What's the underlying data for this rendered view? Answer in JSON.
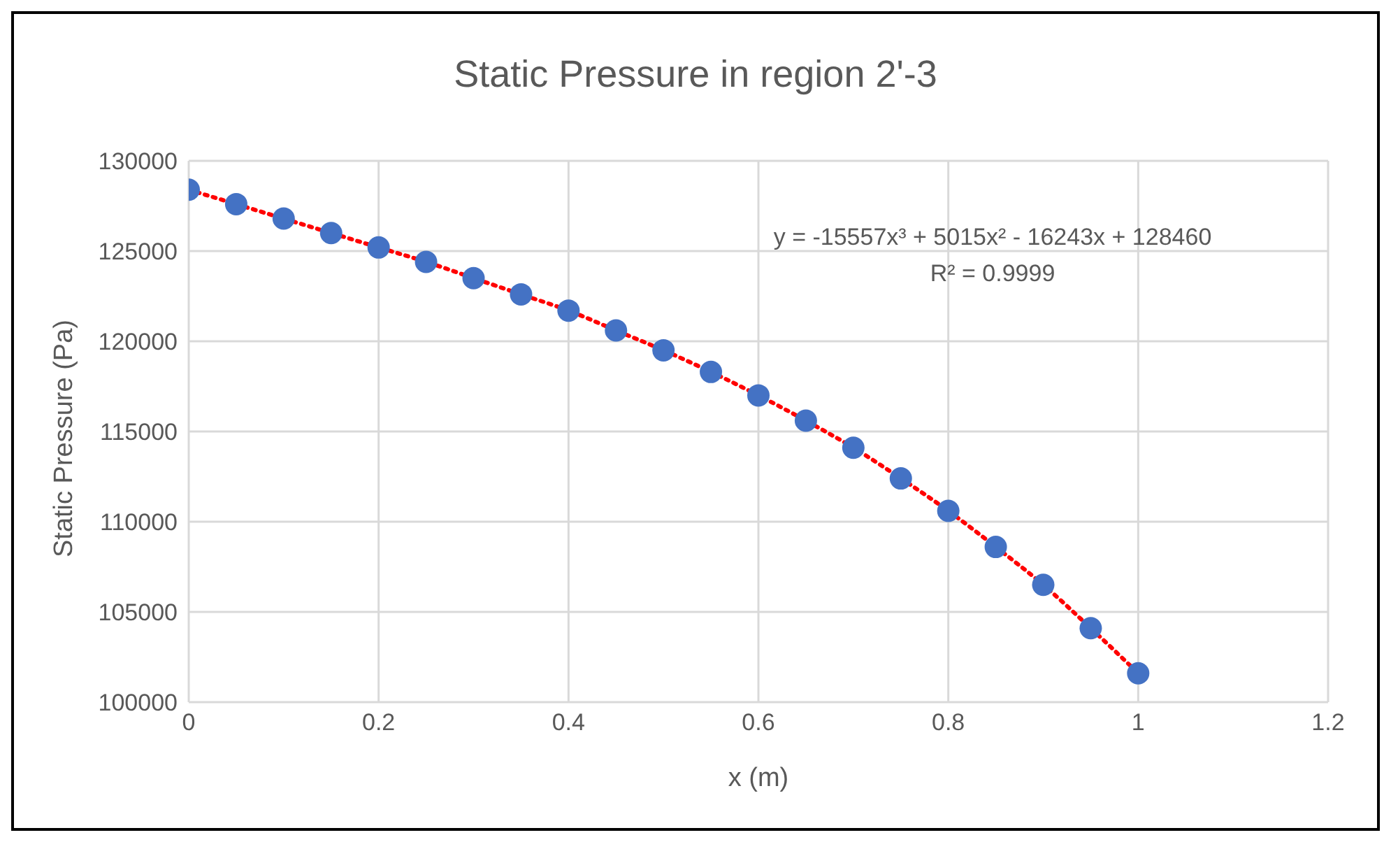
{
  "chart_data": {
    "type": "scatter",
    "title": "Static Pressure in region 2'-3",
    "xlabel": "x (m)",
    "ylabel": "Static Pressure (Pa)",
    "x": [
      0,
      0.05,
      0.1,
      0.15,
      0.2,
      0.25,
      0.3,
      0.35,
      0.4,
      0.45,
      0.5,
      0.55,
      0.6,
      0.65,
      0.7,
      0.75,
      0.8,
      0.85,
      0.9,
      0.95,
      1.0
    ],
    "series": [
      {
        "color": "#4472c4",
        "marker": "circle",
        "values": [
          128400,
          127600,
          126800,
          126000,
          125200,
          124400,
          123500,
          122600,
          121700,
          120600,
          119500,
          118300,
          117000,
          115600,
          114100,
          112400,
          110600,
          108600,
          106500,
          104100,
          101600
        ]
      },
      {
        "type": "line",
        "color": "#ff0000",
        "line_style": "dotted",
        "values": [
          128400,
          127600,
          126800,
          126000,
          125200,
          124400,
          123500,
          122600,
          121700,
          120600,
          119500,
          118300,
          117000,
          115600,
          114100,
          112400,
          110600,
          108600,
          106500,
          104100,
          101600
        ]
      }
    ],
    "annotations": [
      "y = -15557x³ + 5015x² - 16243x + 128460",
      "R² = 0.9999"
    ],
    "xlim": [
      0,
      1.2
    ],
    "xticks": [
      0,
      0.2,
      0.4,
      0.6,
      0.8,
      1,
      1.2
    ],
    "ylim": [
      100000,
      130000
    ],
    "yticks": [
      100000,
      105000,
      110000,
      115000,
      120000,
      125000,
      130000
    ],
    "grid": true,
    "legend": false
  }
}
